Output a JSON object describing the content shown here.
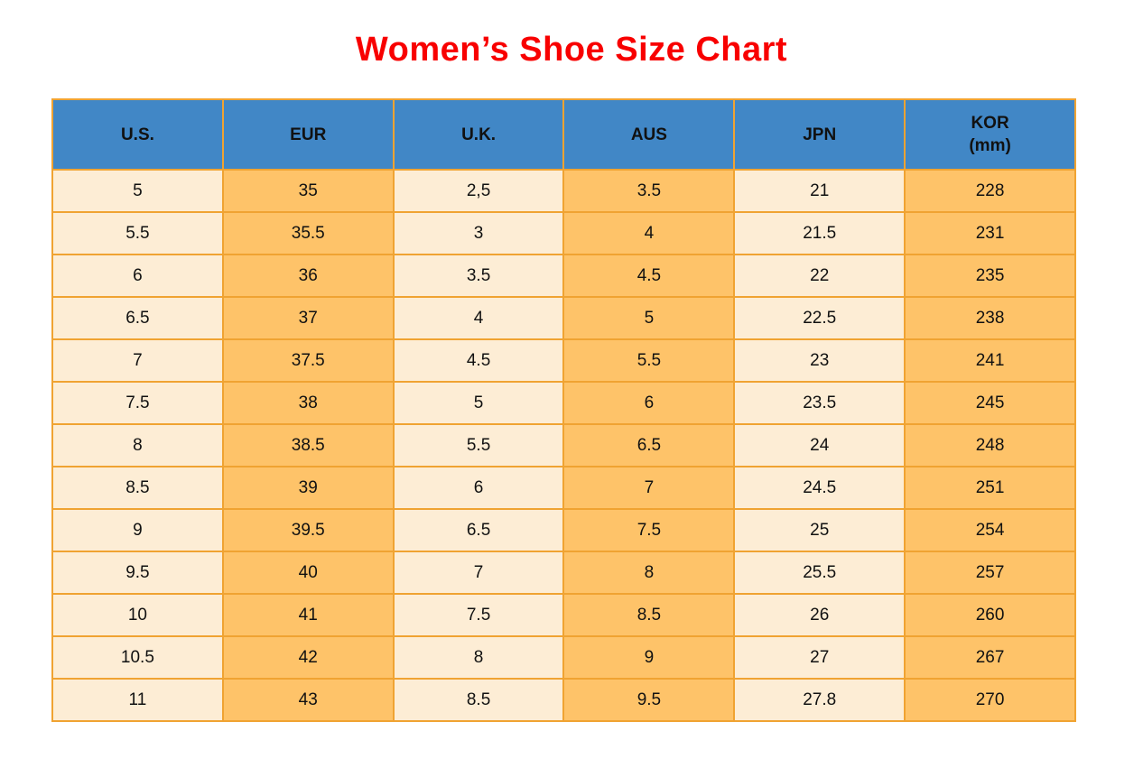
{
  "page": {
    "title": "Women’s Shoe Size Chart"
  },
  "colors": {
    "title_red": "#f80000",
    "header_blue": "#4187c6",
    "cell_cream": "#fdedd5",
    "cell_orange": "#fec369",
    "grid_border": "#f0a332",
    "text": "#111111"
  },
  "chart_data": {
    "type": "table",
    "title": "Women’s Shoe Size Chart",
    "legend_position": "none",
    "grid": true,
    "columns": [
      {
        "key": "us",
        "label": "U.S.",
        "sublabel": ""
      },
      {
        "key": "eur",
        "label": "EUR",
        "sublabel": ""
      },
      {
        "key": "uk",
        "label": "U.K.",
        "sublabel": ""
      },
      {
        "key": "aus",
        "label": "AUS",
        "sublabel": ""
      },
      {
        "key": "jpn",
        "label": "JPN",
        "sublabel": ""
      },
      {
        "key": "kor",
        "label": "KOR",
        "sublabel": "(mm)"
      }
    ],
    "column_fill_pattern": [
      "cream",
      "orange",
      "cream",
      "orange",
      "cream",
      "orange"
    ],
    "rows": [
      [
        "5",
        "35",
        "2,5",
        "3.5",
        "21",
        "228"
      ],
      [
        "5.5",
        "35.5",
        "3",
        "4",
        "21.5",
        "231"
      ],
      [
        "6",
        "36",
        "3.5",
        "4.5",
        "22",
        "235"
      ],
      [
        "6.5",
        "37",
        "4",
        "5",
        "22.5",
        "238"
      ],
      [
        "7",
        "37.5",
        "4.5",
        "5.5",
        "23",
        "241"
      ],
      [
        "7.5",
        "38",
        "5",
        "6",
        "23.5",
        "245"
      ],
      [
        "8",
        "38.5",
        "5.5",
        "6.5",
        "24",
        "248"
      ],
      [
        "8.5",
        "39",
        "6",
        "7",
        "24.5",
        "251"
      ],
      [
        "9",
        "39.5",
        "6.5",
        "7.5",
        "25",
        "254"
      ],
      [
        "9.5",
        "40",
        "7",
        "8",
        "25.5",
        "257"
      ],
      [
        "10",
        "41",
        "7.5",
        "8.5",
        "26",
        "260"
      ],
      [
        "10.5",
        "42",
        "8",
        "9",
        "27",
        "267"
      ],
      [
        "11",
        "43",
        "8.5",
        "9.5",
        "27.8",
        "270"
      ]
    ]
  }
}
